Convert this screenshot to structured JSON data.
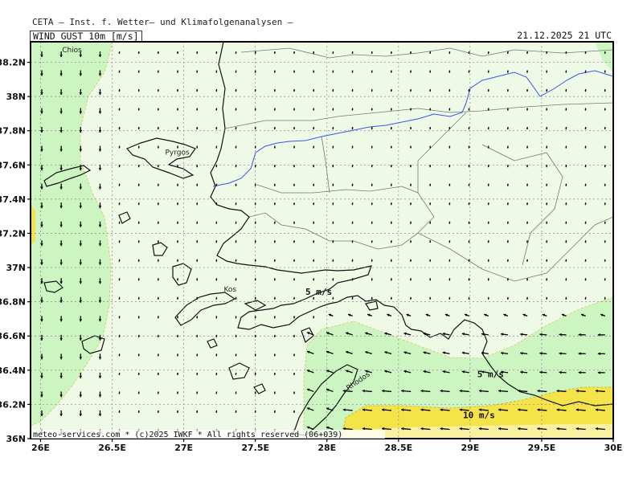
{
  "header": {
    "institute": "CETA – Inst. f. Wetter– und Klimafolgenanalysen –",
    "parameter": "WIND_GUST_10m_[m/s]",
    "valid_time": "21.12.2025  21 UTC",
    "credit": "meteo-services.com * (c)2025 IWKF * All rights reserved (06+039)"
  },
  "axes": {
    "y_ticks": [
      {
        "lat": 36.0,
        "label": "36N"
      },
      {
        "lat": 36.2,
        "label": "36.2N"
      },
      {
        "lat": 36.4,
        "label": "36.4N"
      },
      {
        "lat": 36.6,
        "label": "36.6N"
      },
      {
        "lat": 36.8,
        "label": "36.8N"
      },
      {
        "lat": 37.0,
        "label": "37N"
      },
      {
        "lat": 37.2,
        "label": "37.2N"
      },
      {
        "lat": 37.4,
        "label": "37.4N"
      },
      {
        "lat": 37.6,
        "label": "37.6N"
      },
      {
        "lat": 37.8,
        "label": "37.8N"
      },
      {
        "lat": 38.0,
        "label": "38N"
      },
      {
        "lat": 38.2,
        "label": "38.2N"
      }
    ],
    "x_ticks": [
      {
        "lon": 26.0,
        "label": "26E"
      },
      {
        "lon": 26.5,
        "label": "26.5E"
      },
      {
        "lon": 27.0,
        "label": "27E"
      },
      {
        "lon": 27.5,
        "label": "27.5E"
      },
      {
        "lon": 28.0,
        "label": "28E"
      },
      {
        "lon": 28.5,
        "label": "28.5E"
      },
      {
        "lon": 29.0,
        "label": "29E"
      },
      {
        "lon": 29.5,
        "label": "29.5E"
      },
      {
        "lon": 30.0,
        "label": "30E"
      }
    ],
    "lon_range": [
      25.93,
      30.0
    ],
    "lat_range": [
      36.0,
      38.32
    ],
    "grid": true
  },
  "places": [
    {
      "name": "Chios",
      "lon": 26.15,
      "lat": 38.26
    },
    {
      "name": "Pyrgos",
      "lon": 26.87,
      "lat": 37.66
    },
    {
      "name": "Kos",
      "lon": 27.28,
      "lat": 36.86
    },
    {
      "name": "Rhodos",
      "lon": 28.15,
      "lat": 36.28
    }
  ],
  "isotach_labels": [
    {
      "text": "5 m/s",
      "lon": 27.85,
      "lat": 36.84
    },
    {
      "text": "5 m/s",
      "lon": 29.05,
      "lat": 36.36
    },
    {
      "text": "10 m/s",
      "lon": 28.95,
      "lat": 36.12
    }
  ],
  "colors": {
    "band_0_5": "#eefae6",
    "band_5_10": "#ccf5c2",
    "band_10_15": "#f5e34a",
    "band_15_plus": "#f9f0a0",
    "coast": "#111111",
    "border": "#777777",
    "river": "#3a55e8",
    "grid": "#888888",
    "arrow": "#000000"
  },
  "field": {
    "variable": "wind gust 10m",
    "units": "m/s",
    "levels_ms": [
      5,
      10
    ]
  }
}
